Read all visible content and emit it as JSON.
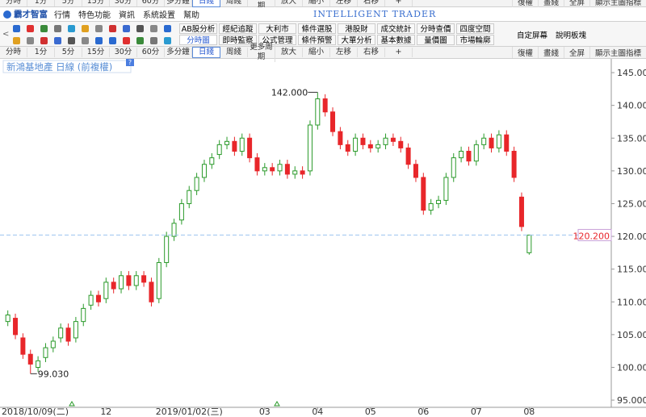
{
  "menu": {
    "logo": "霸才智富",
    "items": [
      "行情",
      "特色功能",
      "資訊",
      "系統設置",
      "幫助"
    ],
    "brand": "INTELLIGENT TRADER"
  },
  "period_bar": {
    "items": [
      "分時",
      "1分",
      "5分",
      "15分",
      "30分",
      "60分",
      "多分鐘",
      "日綫",
      "周綫",
      "更多周期",
      "放大",
      "縮小",
      "左移",
      "右移",
      "+"
    ],
    "right": [
      "復權",
      "畫綫",
      "全屏",
      "顯示主圖指標"
    ]
  },
  "toolbar": {
    "row1": [
      "AB股分析",
      "經紀追蹤",
      "大利市",
      "條件選股",
      "港股財務...",
      "成交統計",
      "分時查價",
      "四度空間"
    ],
    "row2": [
      "分時圖",
      "即時監察",
      "公式管理",
      "條件預警",
      "大單分析",
      "基本數據",
      "量價圖",
      "市場輪廓"
    ],
    "extra": [
      "自定屏幕",
      "說明板塊"
    ]
  },
  "chart_data": {
    "type": "candlestick",
    "title": "新鴻基地產 日線 (前複權)",
    "help": "?",
    "categories": [
      "2018/10/09(二)",
      null,
      null,
      null,
      null,
      null,
      null,
      null,
      null,
      null,
      null,
      null,
      null,
      "12",
      null,
      null,
      null,
      null,
      null,
      null,
      null,
      null,
      null,
      null,
      "2019/01/02(三)",
      null,
      null,
      null,
      null,
      null,
      null,
      null,
      null,
      null,
      "03",
      null,
      null,
      null,
      null,
      null,
      null,
      "04",
      null,
      null,
      null,
      null,
      null,
      null,
      "05",
      null,
      null,
      null,
      null,
      null,
      null,
      "06",
      null,
      null,
      null,
      null,
      null,
      null,
      "07",
      null,
      null,
      null,
      null,
      null,
      null,
      "08"
    ],
    "open": [
      107,
      107.5,
      104.5,
      102,
      100,
      101.5,
      103,
      104.5,
      106,
      104.5,
      107,
      109.5,
      111,
      110.5,
      113,
      112,
      114,
      112.5,
      114,
      113,
      110.5,
      116,
      120,
      122.5,
      125,
      127,
      129,
      131,
      132.5,
      134,
      134.5,
      133,
      135,
      132,
      130,
      130.5,
      130,
      131,
      129.5,
      130,
      130,
      137,
      141,
      139,
      136,
      134,
      133,
      135,
      134,
      133.5,
      134,
      135,
      134.5,
      133.5,
      131,
      129,
      124,
      125,
      125.5,
      129,
      132,
      133,
      131.5,
      134,
      135,
      133.5,
      135.5,
      133,
      126,
      117.5
    ],
    "high": [
      108.7,
      108.2,
      105.2,
      102.7,
      101.7,
      103.7,
      104.7,
      106.7,
      106.7,
      107.7,
      109.7,
      111.7,
      111.7,
      113.7,
      113.7,
      114.7,
      114.7,
      114.7,
      114.7,
      113.7,
      116.7,
      120.7,
      122.7,
      125.7,
      127.7,
      129.7,
      131.7,
      132.7,
      134.7,
      135.2,
      135.2,
      135.7,
      135.7,
      132.7,
      131.2,
      131.2,
      131.7,
      131.7,
      130.7,
      130.7,
      137.7,
      142,
      141.7,
      139.7,
      136.7,
      134.7,
      135.7,
      135.7,
      134.7,
      134.7,
      135.7,
      135.7,
      135.2,
      134.2,
      131.7,
      129.7,
      125.7,
      126.2,
      129.7,
      132.7,
      133.7,
      133.7,
      134.7,
      135.7,
      135.7,
      136.2,
      136.2,
      133.7,
      126.7,
      120.2
    ],
    "low": [
      106.3,
      104.3,
      101.3,
      99.03,
      99.3,
      100.8,
      102.3,
      103.8,
      103.3,
      103.8,
      106.3,
      108.8,
      109.3,
      109.8,
      111.3,
      111.3,
      111.8,
      111.8,
      112.3,
      109.3,
      109.8,
      115.3,
      119.3,
      121.8,
      124.3,
      126.3,
      128.3,
      130.3,
      131.8,
      133.3,
      132.3,
      132.3,
      131.3,
      129.3,
      129.3,
      129.3,
      129.3,
      128.8,
      128.8,
      128.8,
      129.3,
      136.3,
      138.3,
      135.3,
      133.3,
      132.3,
      132.3,
      133.3,
      132.8,
      132.8,
      133.3,
      133.8,
      132.8,
      130.3,
      128.3,
      123.3,
      123.3,
      124.3,
      124.8,
      128.3,
      131.3,
      130.8,
      130.8,
      133.3,
      132.8,
      132.8,
      132.3,
      128.3,
      120.8,
      117.2
    ],
    "close": [
      108,
      105,
      102,
      100.5,
      101,
      103,
      104,
      106,
      104,
      107,
      109,
      111,
      110,
      113,
      112,
      114,
      112.5,
      114,
      113,
      110,
      116,
      120,
      122,
      125,
      127,
      129,
      131,
      132,
      134,
      134.5,
      133,
      135,
      132,
      130,
      130.5,
      130,
      131,
      129.5,
      130,
      129.5,
      137,
      141,
      139,
      136,
      134,
      133,
      135,
      134,
      133.5,
      134,
      135,
      134.5,
      133.5,
      131,
      129,
      124,
      125,
      125.5,
      129,
      132,
      133,
      131.5,
      134,
      135,
      133.5,
      135.5,
      133,
      129,
      121.5,
      120.2
    ],
    "up_color": "#2a9a2a",
    "down_color": "#e8262a",
    "high_label": "142.000",
    "low_label": "99.030",
    "last_price": {
      "value": 120.2,
      "label": "120.200"
    },
    "ylim": [
      93.9,
      147.1
    ],
    "yticks": [
      {
        "value": 95,
        "label": "95.000"
      },
      {
        "value": 100,
        "label": "100.00"
      },
      {
        "value": 105,
        "label": "105.00"
      },
      {
        "value": 110,
        "label": "110.00"
      },
      {
        "value": 115,
        "label": "115.00"
      },
      {
        "value": 120,
        "label": "120.00"
      },
      {
        "value": 125,
        "label": "125.00"
      },
      {
        "value": 130,
        "label": "130.00"
      },
      {
        "value": 135,
        "label": "135.00"
      },
      {
        "value": 140,
        "label": "140.00"
      },
      {
        "value": 145,
        "label": "145.00"
      }
    ],
    "grid": false
  }
}
